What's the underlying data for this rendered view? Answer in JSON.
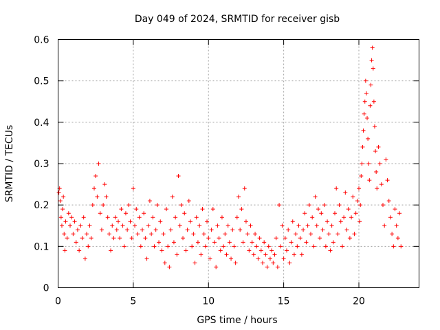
{
  "chart_data": {
    "type": "scatter",
    "title": "Day 049 of 2024, SRMTID for receiver gisb",
    "xlabel": "GPS time / hours",
    "ylabel": "SRMTID / TECUs",
    "xlim": [
      0,
      24
    ],
    "ylim": [
      0,
      0.6
    ],
    "x_ticks": [
      0,
      5,
      10,
      15,
      20
    ],
    "y_ticks": [
      0,
      0.1,
      0.2,
      0.3,
      0.4,
      0.5,
      0.6
    ],
    "x_tick_labels": [
      "0",
      "5",
      "10",
      "15",
      "20"
    ],
    "y_tick_labels": [
      "0",
      "0.1",
      "0.2",
      "0.3",
      "0.4",
      "0.5",
      "0.6"
    ],
    "grid": true,
    "marker": "+",
    "marker_color": "#ff0000",
    "series": [
      {
        "name": "SRMTID",
        "points": [
          [
            0.05,
            0.23
          ],
          [
            0.1,
            0.24
          ],
          [
            0.15,
            0.21
          ],
          [
            0.2,
            0.17
          ],
          [
            0.25,
            0.15
          ],
          [
            0.3,
            0.19
          ],
          [
            0.35,
            0.22
          ],
          [
            0.4,
            0.13
          ],
          [
            0.45,
            0.09
          ],
          [
            0.5,
            0.16
          ],
          [
            0.6,
            0.12
          ],
          [
            0.7,
            0.18
          ],
          [
            0.8,
            0.15
          ],
          [
            0.9,
            0.17
          ],
          [
            1.0,
            0.13
          ],
          [
            1.1,
            0.16
          ],
          [
            1.2,
            0.11
          ],
          [
            1.3,
            0.14
          ],
          [
            1.4,
            0.09
          ],
          [
            1.5,
            0.15
          ],
          [
            1.6,
            0.12
          ],
          [
            1.7,
            0.17
          ],
          [
            1.8,
            0.07
          ],
          [
            1.9,
            0.13
          ],
          [
            2.0,
            0.1
          ],
          [
            2.1,
            0.15
          ],
          [
            2.2,
            0.12
          ],
          [
            2.3,
            0.2
          ],
          [
            2.4,
            0.24
          ],
          [
            2.5,
            0.27
          ],
          [
            2.6,
            0.22
          ],
          [
            2.7,
            0.3
          ],
          [
            2.8,
            0.18
          ],
          [
            2.9,
            0.14
          ],
          [
            3.0,
            0.2
          ],
          [
            3.1,
            0.25
          ],
          [
            3.2,
            0.22
          ],
          [
            3.3,
            0.17
          ],
          [
            3.4,
            0.13
          ],
          [
            3.5,
            0.09
          ],
          [
            3.6,
            0.15
          ],
          [
            3.7,
            0.12
          ],
          [
            3.8,
            0.17
          ],
          [
            3.9,
            0.14
          ],
          [
            4.0,
            0.16
          ],
          [
            4.1,
            0.12
          ],
          [
            4.2,
            0.19
          ],
          [
            4.3,
            0.15
          ],
          [
            4.4,
            0.1
          ],
          [
            4.5,
            0.18
          ],
          [
            4.6,
            0.14
          ],
          [
            4.7,
            0.2
          ],
          [
            4.8,
            0.16
          ],
          [
            4.9,
            0.12
          ],
          [
            5.0,
            0.24
          ],
          [
            5.1,
            0.15
          ],
          [
            5.2,
            0.19
          ],
          [
            5.3,
            0.13
          ],
          [
            5.4,
            0.17
          ],
          [
            5.5,
            0.1
          ],
          [
            5.6,
            0.14
          ],
          [
            5.7,
            0.18
          ],
          [
            5.8,
            0.12
          ],
          [
            5.9,
            0.07
          ],
          [
            6.0,
            0.15
          ],
          [
            6.1,
            0.21
          ],
          [
            6.2,
            0.13
          ],
          [
            6.3,
            0.17
          ],
          [
            6.4,
            0.1
          ],
          [
            6.5,
            0.14
          ],
          [
            6.6,
            0.2
          ],
          [
            6.7,
            0.11
          ],
          [
            6.8,
            0.16
          ],
          [
            6.9,
            0.09
          ],
          [
            7.0,
            0.13
          ],
          [
            7.1,
            0.06
          ],
          [
            7.2,
            0.19
          ],
          [
            7.3,
            0.1
          ],
          [
            7.4,
            0.05
          ],
          [
            7.5,
            0.14
          ],
          [
            7.6,
            0.22
          ],
          [
            7.7,
            0.11
          ],
          [
            7.8,
            0.17
          ],
          [
            7.9,
            0.08
          ],
          [
            8.0,
            0.27
          ],
          [
            8.1,
            0.15
          ],
          [
            8.2,
            0.2
          ],
          [
            8.3,
            0.12
          ],
          [
            8.4,
            0.18
          ],
          [
            8.5,
            0.09
          ],
          [
            8.6,
            0.14
          ],
          [
            8.7,
            0.21
          ],
          [
            8.8,
            0.16
          ],
          [
            8.9,
            0.1
          ],
          [
            9.0,
            0.13
          ],
          [
            9.1,
            0.06
          ],
          [
            9.2,
            0.17
          ],
          [
            9.3,
            0.11
          ],
          [
            9.4,
            0.15
          ],
          [
            9.5,
            0.08
          ],
          [
            9.6,
            0.19
          ],
          [
            9.7,
            0.13
          ],
          [
            9.8,
            0.1
          ],
          [
            9.9,
            0.16
          ],
          [
            10.0,
            0.12
          ],
          [
            10.1,
            0.07
          ],
          [
            10.2,
            0.14
          ],
          [
            10.3,
            0.19
          ],
          [
            10.4,
            0.11
          ],
          [
            10.5,
            0.05
          ],
          [
            10.6,
            0.15
          ],
          [
            10.7,
            0.12
          ],
          [
            10.8,
            0.09
          ],
          [
            10.9,
            0.17
          ],
          [
            11.0,
            0.1
          ],
          [
            11.1,
            0.13
          ],
          [
            11.2,
            0.08
          ],
          [
            11.3,
            0.15
          ],
          [
            11.4,
            0.11
          ],
          [
            11.5,
            0.07
          ],
          [
            11.6,
            0.14
          ],
          [
            11.7,
            0.1
          ],
          [
            11.8,
            0.06
          ],
          [
            11.9,
            0.17
          ],
          [
            12.0,
            0.22
          ],
          [
            12.1,
            0.14
          ],
          [
            12.2,
            0.19
          ],
          [
            12.3,
            0.11
          ],
          [
            12.4,
            0.24
          ],
          [
            12.5,
            0.16
          ],
          [
            12.6,
            0.13
          ],
          [
            12.7,
            0.09
          ],
          [
            12.8,
            0.15
          ],
          [
            12.9,
            0.11
          ],
          [
            13.0,
            0.08
          ],
          [
            13.1,
            0.13
          ],
          [
            13.2,
            0.1
          ],
          [
            13.3,
            0.07
          ],
          [
            13.4,
            0.12
          ],
          [
            13.5,
            0.09
          ],
          [
            13.6,
            0.06
          ],
          [
            13.7,
            0.11
          ],
          [
            13.8,
            0.08
          ],
          [
            13.9,
            0.05
          ],
          [
            14.0,
            0.1
          ],
          [
            14.1,
            0.07
          ],
          [
            14.2,
            0.09
          ],
          [
            14.3,
            0.06
          ],
          [
            14.4,
            0.08
          ],
          [
            14.5,
            0.12
          ],
          [
            14.6,
            0.05
          ],
          [
            14.7,
            0.2
          ],
          [
            14.8,
            0.1
          ],
          [
            14.9,
            0.15
          ],
          [
            15.0,
            0.07
          ],
          [
            15.1,
            0.12
          ],
          [
            15.2,
            0.09
          ],
          [
            15.3,
            0.14
          ],
          [
            15.4,
            0.06
          ],
          [
            15.5,
            0.11
          ],
          [
            15.6,
            0.16
          ],
          [
            15.7,
            0.08
          ],
          [
            15.8,
            0.13
          ],
          [
            15.9,
            0.1
          ],
          [
            16.0,
            0.15
          ],
          [
            16.1,
            0.12
          ],
          [
            16.2,
            0.08
          ],
          [
            16.3,
            0.14
          ],
          [
            16.4,
            0.18
          ],
          [
            16.5,
            0.11
          ],
          [
            16.6,
            0.15
          ],
          [
            16.7,
            0.2
          ],
          [
            16.8,
            0.13
          ],
          [
            16.9,
            0.17
          ],
          [
            17.0,
            0.1
          ],
          [
            17.1,
            0.22
          ],
          [
            17.2,
            0.15
          ],
          [
            17.3,
            0.19
          ],
          [
            17.4,
            0.12
          ],
          [
            17.5,
            0.18
          ],
          [
            17.6,
            0.14
          ],
          [
            17.7,
            0.2
          ],
          [
            17.8,
            0.1
          ],
          [
            17.9,
            0.16
          ],
          [
            18.0,
            0.13
          ],
          [
            18.1,
            0.09
          ],
          [
            18.2,
            0.15
          ],
          [
            18.3,
            0.11
          ],
          [
            18.4,
            0.18
          ],
          [
            18.5,
            0.24
          ],
          [
            18.6,
            0.13
          ],
          [
            18.7,
            0.2
          ],
          [
            18.8,
            0.16
          ],
          [
            18.9,
            0.1
          ],
          [
            19.0,
            0.17
          ],
          [
            19.1,
            0.23
          ],
          [
            19.2,
            0.14
          ],
          [
            19.3,
            0.19
          ],
          [
            19.4,
            0.12
          ],
          [
            19.5,
            0.17
          ],
          [
            19.6,
            0.22
          ],
          [
            19.7,
            0.13
          ],
          [
            19.8,
            0.18
          ],
          [
            19.9,
            0.21
          ],
          [
            20.0,
            0.24
          ],
          [
            20.05,
            0.16
          ],
          [
            20.1,
            0.2
          ],
          [
            20.15,
            0.27
          ],
          [
            20.2,
            0.3
          ],
          [
            20.25,
            0.34
          ],
          [
            20.3,
            0.38
          ],
          [
            20.35,
            0.42
          ],
          [
            20.4,
            0.45
          ],
          [
            20.45,
            0.5
          ],
          [
            20.5,
            0.47
          ],
          [
            20.55,
            0.41
          ],
          [
            20.6,
            0.36
          ],
          [
            20.65,
            0.3
          ],
          [
            20.7,
            0.26
          ],
          [
            20.75,
            0.44
          ],
          [
            20.8,
            0.49
          ],
          [
            20.85,
            0.55
          ],
          [
            20.9,
            0.58
          ],
          [
            20.95,
            0.53
          ],
          [
            21.0,
            0.45
          ],
          [
            21.05,
            0.39
          ],
          [
            21.1,
            0.33
          ],
          [
            21.15,
            0.28
          ],
          [
            21.2,
            0.24
          ],
          [
            21.3,
            0.34
          ],
          [
            21.4,
            0.3
          ],
          [
            21.5,
            0.25
          ],
          [
            21.6,
            0.2
          ],
          [
            21.7,
            0.15
          ],
          [
            21.8,
            0.31
          ],
          [
            21.9,
            0.26
          ],
          [
            22.0,
            0.21
          ],
          [
            22.1,
            0.17
          ],
          [
            22.2,
            0.13
          ],
          [
            22.3,
            0.1
          ],
          [
            22.4,
            0.19
          ],
          [
            22.5,
            0.15
          ],
          [
            22.6,
            0.12
          ],
          [
            22.7,
            0.18
          ],
          [
            22.8,
            0.1
          ]
        ]
      }
    ]
  }
}
